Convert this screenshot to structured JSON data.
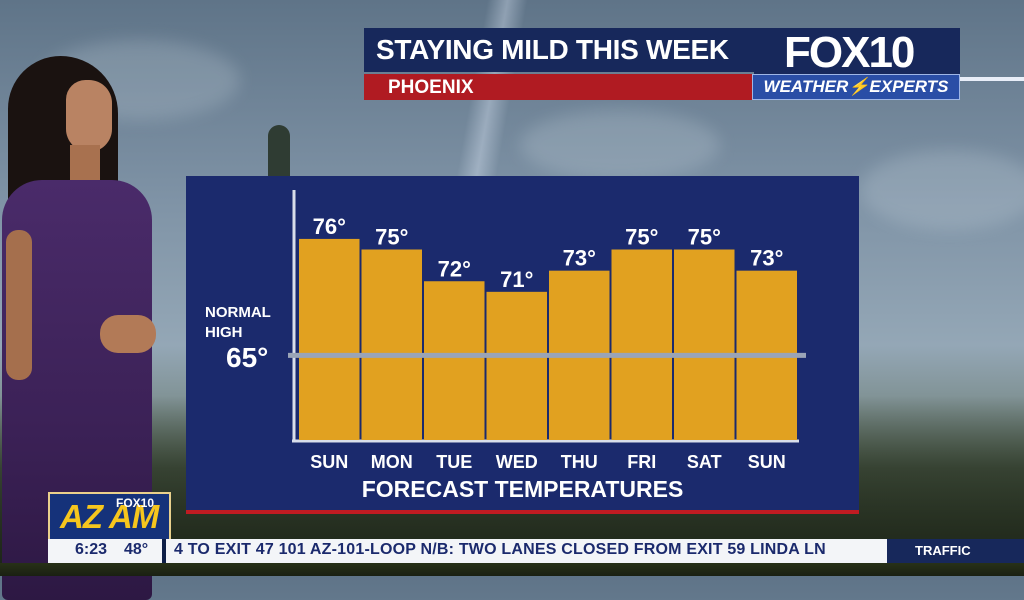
{
  "headline": {
    "title": "STAYING MILD THIS WEEK",
    "location": "PHOENIX"
  },
  "brand": {
    "logo": "FOX10",
    "tagline": "WEATHER⚡EXPERTS"
  },
  "normal": {
    "label_line1": "NORMAL",
    "label_line2": "HIGH",
    "value": "65°",
    "numeric": 65
  },
  "chart_data": {
    "type": "bar",
    "title": "FORECAST TEMPERATURES",
    "categories": [
      "SUN",
      "MON",
      "TUE",
      "WED",
      "THU",
      "FRI",
      "SAT",
      "SUN"
    ],
    "values": [
      76,
      75,
      72,
      71,
      73,
      75,
      75,
      73
    ],
    "value_labels": [
      "76°",
      "75°",
      "72°",
      "71°",
      "73°",
      "75°",
      "75°",
      "73°"
    ],
    "reference_line": 65,
    "colors": {
      "bar": "#e1a120",
      "panel": "#1b2a6d",
      "axis": "#d9deea",
      "reference": "#9aa4b7"
    }
  },
  "bottom": {
    "show_logo_main": "AZ AM",
    "show_logo_sub": "FOX10",
    "time": "6:23",
    "temperature": "48°",
    "traffic_text": "4 TO EXIT 47  101  AZ-101-LOOP N/B: TWO LANES CLOSED FROM EXIT 59 LINDA LN",
    "traffic_label": "TRAFFIC"
  }
}
